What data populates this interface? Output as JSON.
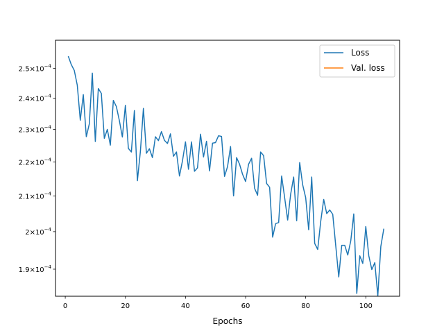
{
  "chart_data": {
    "type": "line",
    "xlabel": "Epochs",
    "ylabel": "",
    "title": "",
    "y_scale": "log",
    "x_range": [
      -3.25,
      111.25
    ],
    "y_range": [
      0.0001831,
      0.0002598
    ],
    "x_ticks": [
      0,
      20,
      40,
      60,
      80,
      100
    ],
    "x_tick_labels": [
      "0",
      "20",
      "40",
      "60",
      "80",
      "100"
    ],
    "y_ticks": [
      0.00019,
      0.0002,
      0.00021,
      0.00022,
      0.00023,
      0.00024,
      0.00025
    ],
    "y_tick_labels": [
      {
        "mant": "1.9",
        "exp": "−4"
      },
      {
        "mant": "2",
        "exp": "−4"
      },
      {
        "mant": "2.1",
        "exp": "−4"
      },
      {
        "mant": "2.2",
        "exp": "−4"
      },
      {
        "mant": "2.3",
        "exp": "−4"
      },
      {
        "mant": "2.4",
        "exp": "−4"
      },
      {
        "mant": "2.5",
        "exp": "−4"
      }
    ],
    "y_base_label": "10",
    "grid": false,
    "legend_position": "top-right",
    "series": [
      {
        "name": "Loss",
        "color": "#1f77b4",
        "x_start": 1,
        "x_step": 1,
        "values": [
          0.0002542,
          0.0002513,
          0.0002493,
          0.0002443,
          0.0002329,
          0.0002412,
          0.0002277,
          0.0002317,
          0.0002484,
          0.0002262,
          0.0002432,
          0.0002416,
          0.0002272,
          0.00023,
          0.0002251,
          0.0002393,
          0.0002373,
          0.0002328,
          0.0002276,
          0.0002377,
          0.0002241,
          0.000223,
          0.000236,
          0.0002144,
          0.0002232,
          0.0002367,
          0.0002226,
          0.000224,
          0.0002213,
          0.0002277,
          0.0002265,
          0.0002293,
          0.0002266,
          0.0002256,
          0.0002286,
          0.0002217,
          0.000223,
          0.0002158,
          0.0002203,
          0.0002261,
          0.0002178,
          0.0002261,
          0.0002172,
          0.0002182,
          0.0002285,
          0.0002215,
          0.0002263,
          0.0002173,
          0.0002257,
          0.0002259,
          0.000228,
          0.0002278,
          0.0002157,
          0.0002186,
          0.0002247,
          0.00021,
          0.0002213,
          0.0002193,
          0.0002163,
          0.0002142,
          0.0002193,
          0.0002211,
          0.0002122,
          0.0002102,
          0.000223,
          0.0002219,
          0.0002136,
          0.0002125,
          0.0001985,
          0.0002022,
          0.0002025,
          0.0002158,
          0.0002095,
          0.0002032,
          0.0002105,
          0.0002155,
          0.000203,
          0.0002198,
          0.0002132,
          0.0002095,
          0.0002005,
          0.0002155,
          0.0001968,
          0.0001952,
          0.0002028,
          0.000209,
          0.000205,
          0.000206,
          0.0002048,
          0.0001962,
          0.000188,
          0.0001963,
          0.0001963,
          0.0001937,
          0.0001975,
          0.0002049,
          0.0001838,
          0.0001935,
          0.0001915,
          0.0002014,
          0.0001935,
          0.0001899,
          0.0001917,
          0.0001832,
          0.000196,
          0.0002008
        ]
      },
      {
        "name": "Val. loss",
        "color": "#ff7f0e",
        "x_start": 1,
        "x_step": 1,
        "values": []
      }
    ]
  }
}
